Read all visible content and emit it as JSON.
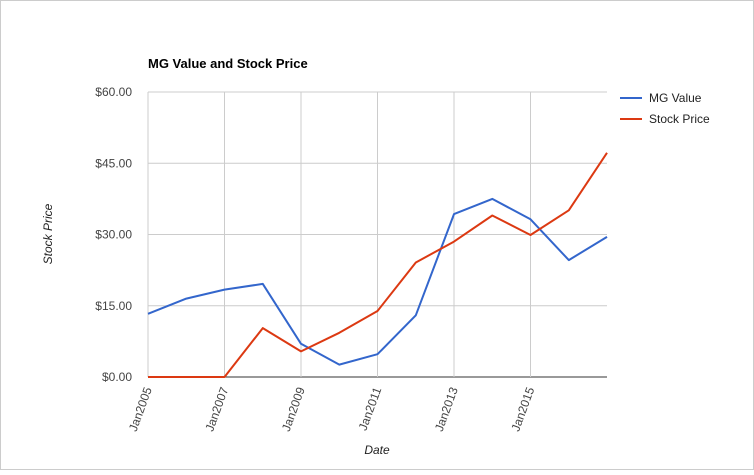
{
  "chart_data": {
    "type": "line",
    "title": "MG Value and Stock Price",
    "xlabel": "Date",
    "ylabel": "Stock Price",
    "x": [
      "2005",
      "2006",
      "2007",
      "2008",
      "2009",
      "2010",
      "2011",
      "2012",
      "2013",
      "2014",
      "2015",
      "2016",
      "2017"
    ],
    "x_ticks": [
      "Jan2005",
      "Jan2007",
      "Jan2009",
      "Jan2011",
      "Jan2013",
      "Jan2015"
    ],
    "y_ticks": [
      "$0.00",
      "$15.00",
      "$30.00",
      "$45.00",
      "$60.00"
    ],
    "ylim": [
      0,
      60
    ],
    "grid": true,
    "legend_position": "right",
    "series": [
      {
        "name": "MG Value",
        "color": "#3366cc",
        "values": [
          13.3,
          16.5,
          18.4,
          19.6,
          7.0,
          2.6,
          4.8,
          13.0,
          34.3,
          37.5,
          33.2,
          24.6,
          29.5
        ]
      },
      {
        "name": "Stock Price",
        "color": "#dc3912",
        "values": [
          0.0,
          0.0,
          0.0,
          10.3,
          5.4,
          9.3,
          13.9,
          24.1,
          28.5,
          34.0,
          29.9,
          35.1,
          47.2
        ]
      }
    ]
  }
}
